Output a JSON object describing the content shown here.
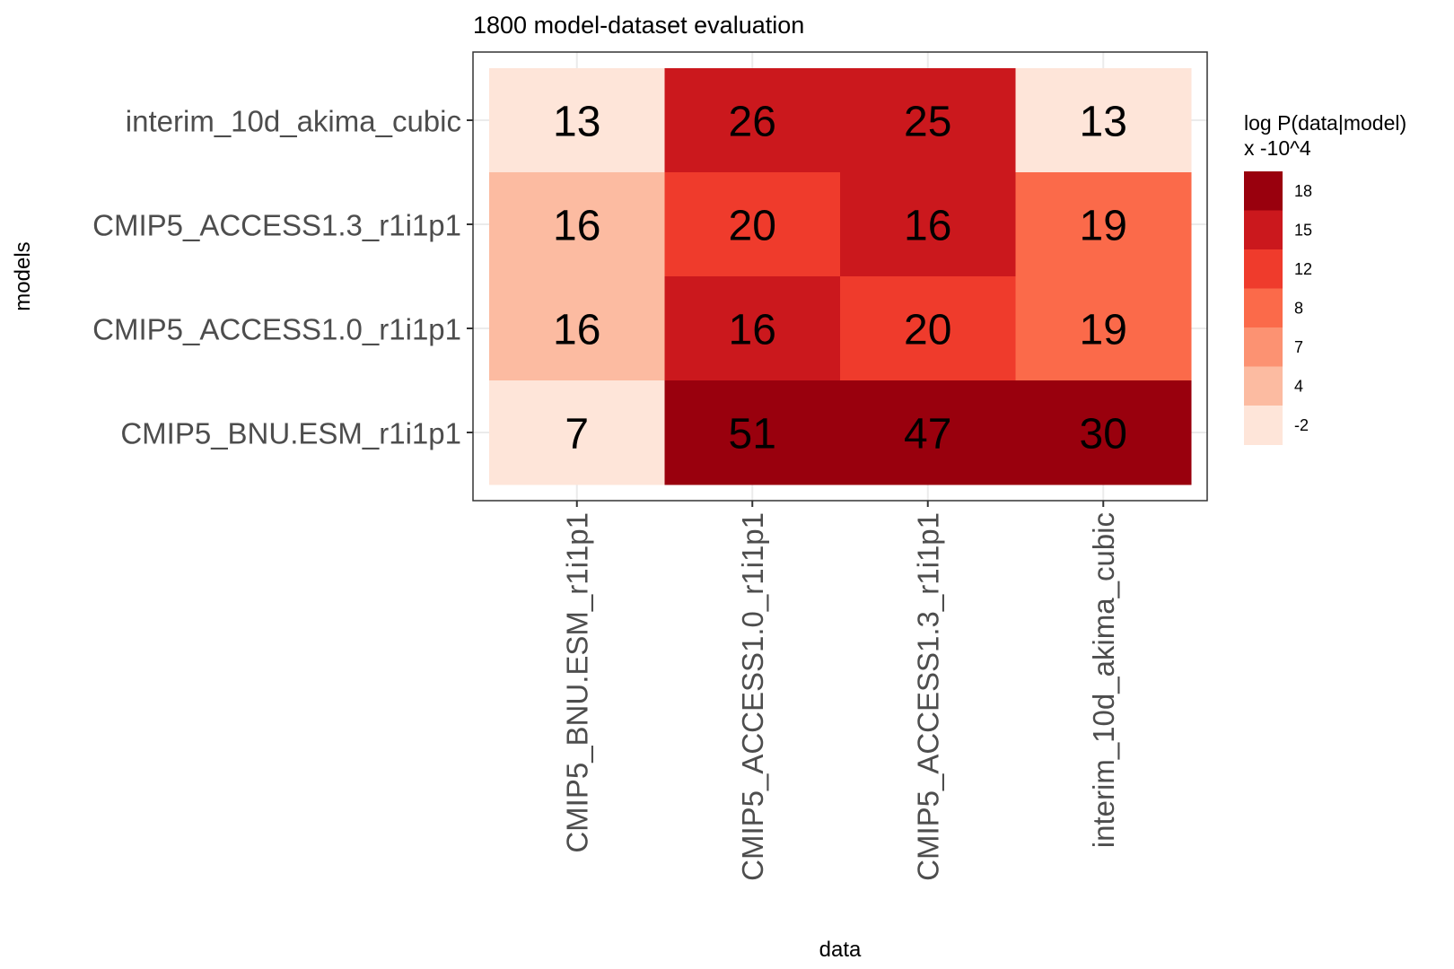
{
  "chart_data": {
    "type": "heatmap",
    "title": "1800 model-dataset evaluation",
    "xlabel": "data",
    "ylabel": "models",
    "x_categories": [
      "CMIP5_BNU.ESM_r1i1p1",
      "CMIP5_ACCESS1.0_r1i1p1",
      "CMIP5_ACCESS1.3_r1i1p1",
      "interim_10d_akima_cubic"
    ],
    "y_categories": [
      "interim_10d_akima_cubic",
      "CMIP5_ACCESS1.3_r1i1p1",
      "CMIP5_ACCESS1.0_r1i1p1",
      "CMIP5_BNU.ESM_r1i1p1"
    ],
    "values": [
      [
        13,
        26,
        25,
        13
      ],
      [
        16,
        20,
        16,
        19
      ],
      [
        16,
        16,
        20,
        19
      ],
      [
        7,
        51,
        47,
        30
      ]
    ],
    "fill_bins": [
      [
        0,
        3,
        3,
        0
      ],
      [
        2,
        4,
        3,
        5
      ],
      [
        2,
        3,
        4,
        5
      ],
      [
        0,
        6,
        6,
        6
      ]
    ],
    "legend": {
      "title_line1": "log P(data|model)",
      "title_line2": "x -10^4",
      "labels": [
        "18",
        "15",
        "12",
        "8",
        "7",
        "4",
        "-2"
      ],
      "colors": [
        "#99000d",
        "#cb181d",
        "#ef3b2c",
        "#fb6a4a",
        "#fc9272",
        "#fcbba1",
        "#fee5d9"
      ]
    },
    "palette_by_bin": [
      "#fee5d9",
      "#fcbba1",
      "#fcbba1",
      "#cb181d",
      "#ef3b2c",
      "#fb6a4a",
      "#99000d"
    ],
    "grid": true,
    "legend_position": "right"
  }
}
